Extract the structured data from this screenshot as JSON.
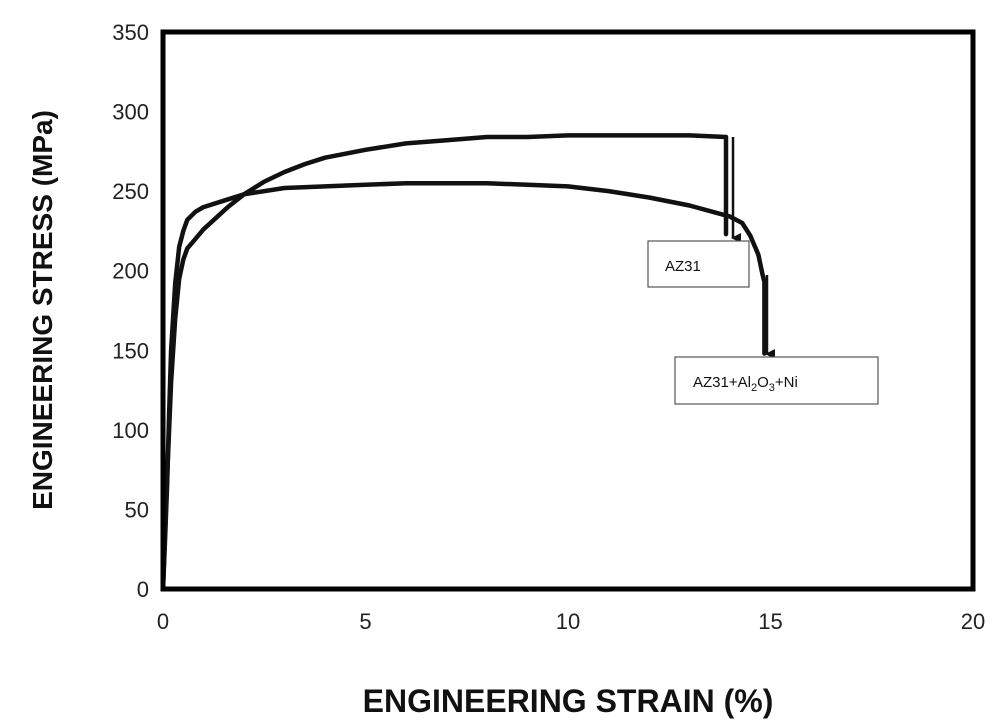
{
  "chart_data": {
    "type": "line",
    "xlabel": "ENGINEERING STRAIN (%)",
    "ylabel": "ENGINEERING STRESS (MPa)",
    "xlim": [
      0,
      20
    ],
    "ylim": [
      0,
      350
    ],
    "xticks": [
      "0",
      "5",
      "10",
      "15",
      "20"
    ],
    "yticks": [
      "0",
      "50",
      "100",
      "150",
      "200",
      "250",
      "300",
      "350"
    ],
    "grid": false,
    "legend": "none",
    "line_color": "#111111",
    "series": [
      {
        "name": "AZ31",
        "x": [
          0,
          0.05,
          0.1,
          0.15,
          0.2,
          0.3,
          0.4,
          0.5,
          0.6,
          0.8,
          1.0,
          1.3,
          1.6,
          2.0,
          2.5,
          3.0,
          3.5,
          4.0,
          5.0,
          6.0,
          7.0,
          8.0,
          9.0,
          10.0,
          11.0,
          12.0,
          13.0,
          13.9,
          13.9
        ],
        "y": [
          0,
          35,
          70,
          100,
          130,
          170,
          195,
          207,
          214,
          220,
          226,
          233,
          240,
          248,
          256,
          262,
          267,
          271,
          276,
          280,
          282,
          284,
          284,
          285,
          285,
          285,
          285,
          284,
          223
        ]
      },
      {
        "name": "AZ31+Al2O3+Ni",
        "x": [
          0,
          0.05,
          0.1,
          0.15,
          0.2,
          0.3,
          0.4,
          0.5,
          0.6,
          0.8,
          1.0,
          1.5,
          2.0,
          3.0,
          4.0,
          5.0,
          6.0,
          7.0,
          8.0,
          9.0,
          10.0,
          11.0,
          12.0,
          13.0,
          14.0,
          14.3,
          14.5,
          14.7,
          14.8,
          14.85,
          14.85
        ],
        "y": [
          0,
          30,
          65,
          110,
          150,
          192,
          215,
          225,
          232,
          237,
          240,
          244,
          248,
          252,
          253,
          254,
          255,
          255,
          255,
          254,
          253,
          250,
          246,
          241,
          234,
          230,
          222,
          210,
          198,
          193,
          148
        ]
      }
    ],
    "annotations": [
      {
        "text": "AZ31",
        "series": "AZ31"
      },
      {
        "text_parts": [
          "AZ31+Al",
          "2",
          "O",
          "3",
          "+Ni"
        ],
        "series": "AZ31+Al2O3+Ni"
      }
    ]
  }
}
